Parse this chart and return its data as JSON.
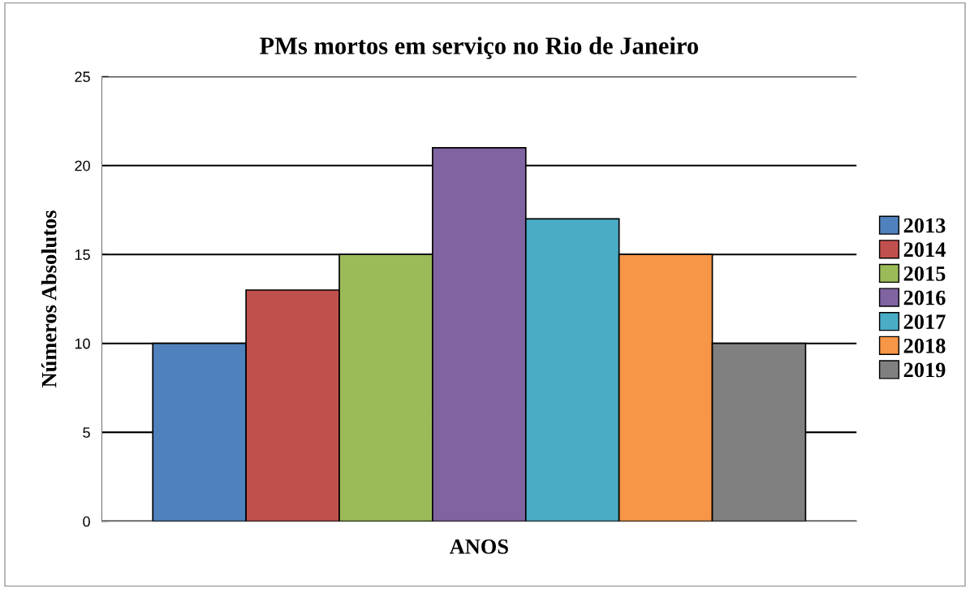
{
  "chart_data": {
    "type": "bar",
    "title": "PMs mortos em serviço no Rio de Janeiro",
    "xlabel": "ANOS",
    "ylabel": "Números Absolutos",
    "categories": [
      null
    ],
    "series": [
      {
        "name": "2013",
        "color": "#4f81bd",
        "values": [
          10
        ]
      },
      {
        "name": "2014",
        "color": "#c0504d",
        "values": [
          13
        ]
      },
      {
        "name": "2015",
        "color": "#9bbb59",
        "values": [
          15
        ]
      },
      {
        "name": "2016",
        "color": "#8064a2",
        "values": [
          21
        ]
      },
      {
        "name": "2017",
        "color": "#4bacc6",
        "values": [
          17
        ]
      },
      {
        "name": "2018",
        "color": "#f79646",
        "values": [
          15
        ]
      },
      {
        "name": "2019",
        "color": "#808080",
        "values": [
          10
        ]
      }
    ],
    "ylim": [
      0,
      25
    ],
    "yticks": [
      0,
      5,
      10,
      15,
      20,
      25
    ],
    "grid": "y",
    "legend": "right"
  }
}
